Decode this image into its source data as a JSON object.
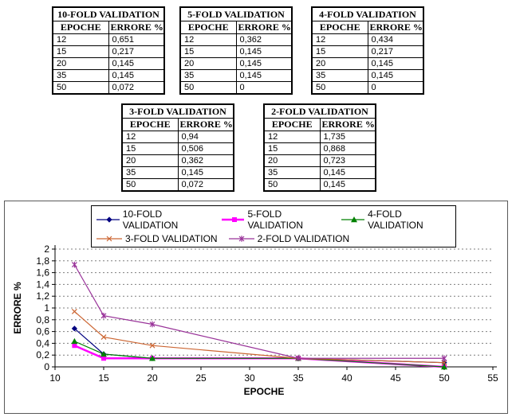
{
  "tables": [
    {
      "title": "10-FOLD VALIDATION",
      "col_headers": [
        "EPOCHE",
        "ERRORE %"
      ],
      "rows": [
        [
          "12",
          "0,651"
        ],
        [
          "15",
          "0,217"
        ],
        [
          "20",
          "0,145"
        ],
        [
          "35",
          "0,145"
        ],
        [
          "50",
          "0,072"
        ]
      ]
    },
    {
      "title": "5-FOLD VALIDATION",
      "col_headers": [
        "EPOCHE",
        "ERRORE %"
      ],
      "rows": [
        [
          "12",
          "0,362"
        ],
        [
          "15",
          "0,145"
        ],
        [
          "20",
          "0,145"
        ],
        [
          "35",
          "0,145"
        ],
        [
          "50",
          "0"
        ]
      ]
    },
    {
      "title": "4-FOLD VALIDATION",
      "col_headers": [
        "EPOCHE",
        "ERRORE %"
      ],
      "rows": [
        [
          "12",
          "0,434"
        ],
        [
          "15",
          "0,217"
        ],
        [
          "20",
          "0,145"
        ],
        [
          "35",
          "0,145"
        ],
        [
          "50",
          "0"
        ]
      ]
    },
    {
      "title": "3-FOLD VALIDATION",
      "col_headers": [
        "EPOCHE",
        "ERRORE %"
      ],
      "rows": [
        [
          "12",
          "0,94"
        ],
        [
          "15",
          "0,506"
        ],
        [
          "20",
          "0,362"
        ],
        [
          "35",
          "0,145"
        ],
        [
          "50",
          "0,072"
        ]
      ]
    },
    {
      "title": "2-FOLD VALIDATION",
      "col_headers": [
        "EPOCHE",
        "ERRORE %"
      ],
      "rows": [
        [
          "12",
          "1,735"
        ],
        [
          "15",
          "0,868"
        ],
        [
          "20",
          "0,723"
        ],
        [
          "35",
          "0,145"
        ],
        [
          "50",
          "0,145"
        ]
      ]
    }
  ],
  "chart_data": {
    "type": "line",
    "x": [
      12,
      15,
      20,
      35,
      50
    ],
    "series": [
      {
        "name": "10-FOLD VALIDATION",
        "color": "#000080",
        "marker": "diamond",
        "line_width": 1.2,
        "values": [
          0.651,
          0.217,
          0.145,
          0.145,
          0.072
        ]
      },
      {
        "name": "5-FOLD VALIDATION",
        "color": "#FF00FF",
        "marker": "square",
        "line_width": 2.5,
        "values": [
          0.362,
          0.145,
          0.145,
          0.145,
          0
        ]
      },
      {
        "name": "4-FOLD VALIDATION",
        "color": "#008000",
        "marker": "triangle",
        "line_width": 1.2,
        "values": [
          0.434,
          0.217,
          0.145,
          0.145,
          0
        ]
      },
      {
        "name": "3-FOLD VALIDATION",
        "color": "#CC6633",
        "marker": "x",
        "line_width": 1.2,
        "values": [
          0.94,
          0.506,
          0.362,
          0.145,
          0.072
        ]
      },
      {
        "name": "2-FOLD VALIDATION",
        "color": "#993399",
        "marker": "star",
        "line_width": 1.2,
        "values": [
          1.735,
          0.868,
          0.723,
          0.145,
          0.145
        ]
      }
    ],
    "xlabel": "EPOCHE",
    "ylabel": "ERRORE %",
    "xlim": [
      10,
      55
    ],
    "ylim": [
      0,
      2
    ],
    "x_ticks": [
      "10",
      "15",
      "20",
      "25",
      "30",
      "35",
      "40",
      "45",
      "50",
      "55"
    ],
    "y_ticks": [
      "0",
      "0,2",
      "0,4",
      "0,6",
      "0,8",
      "1",
      "1,2",
      "1,4",
      "1,6",
      "1,8",
      "2"
    ],
    "grid": "horizontal-dashed",
    "gridline_color": "#7f7f7f",
    "axis_color": "#000000",
    "legend_position": "top-center"
  }
}
